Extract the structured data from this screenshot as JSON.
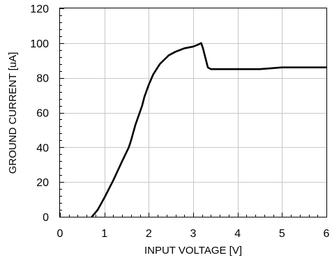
{
  "chart_data": {
    "type": "line",
    "xlabel": "INPUT VOLTAGE [V]",
    "ylabel": "GROUND CURRENT [uA]",
    "xlim": [
      0,
      6
    ],
    "ylim": [
      0,
      120
    ],
    "x_ticks": [
      0,
      1,
      2,
      3,
      4,
      5,
      6
    ],
    "y_ticks": [
      0,
      20,
      40,
      60,
      80,
      100,
      120
    ],
    "x_tick_labels": [
      "0",
      "1",
      "2",
      "3",
      "4",
      "5",
      "6"
    ],
    "y_tick_labels": [
      "0",
      "20",
      "40",
      "60",
      "80",
      "100",
      "120"
    ],
    "grid": true,
    "series": [
      {
        "color": "#000000",
        "x": [
          0.72,
          0.85,
          1.0,
          1.2,
          1.4,
          1.55,
          1.6,
          1.7,
          1.85,
          1.9,
          2.0,
          2.1,
          2.25,
          2.45,
          2.6,
          2.8,
          3.0,
          3.1,
          3.18,
          3.22,
          3.27,
          3.33,
          3.4,
          3.6,
          4.0,
          4.5,
          5.0,
          5.5,
          6.0
        ],
        "y": [
          0,
          4,
          11,
          21,
          32,
          40,
          44,
          53,
          64,
          69,
          76,
          82,
          88,
          93,
          95,
          97,
          98,
          99,
          100,
          97,
          92,
          86,
          85,
          85,
          85,
          85,
          86,
          86,
          86
        ]
      }
    ]
  }
}
